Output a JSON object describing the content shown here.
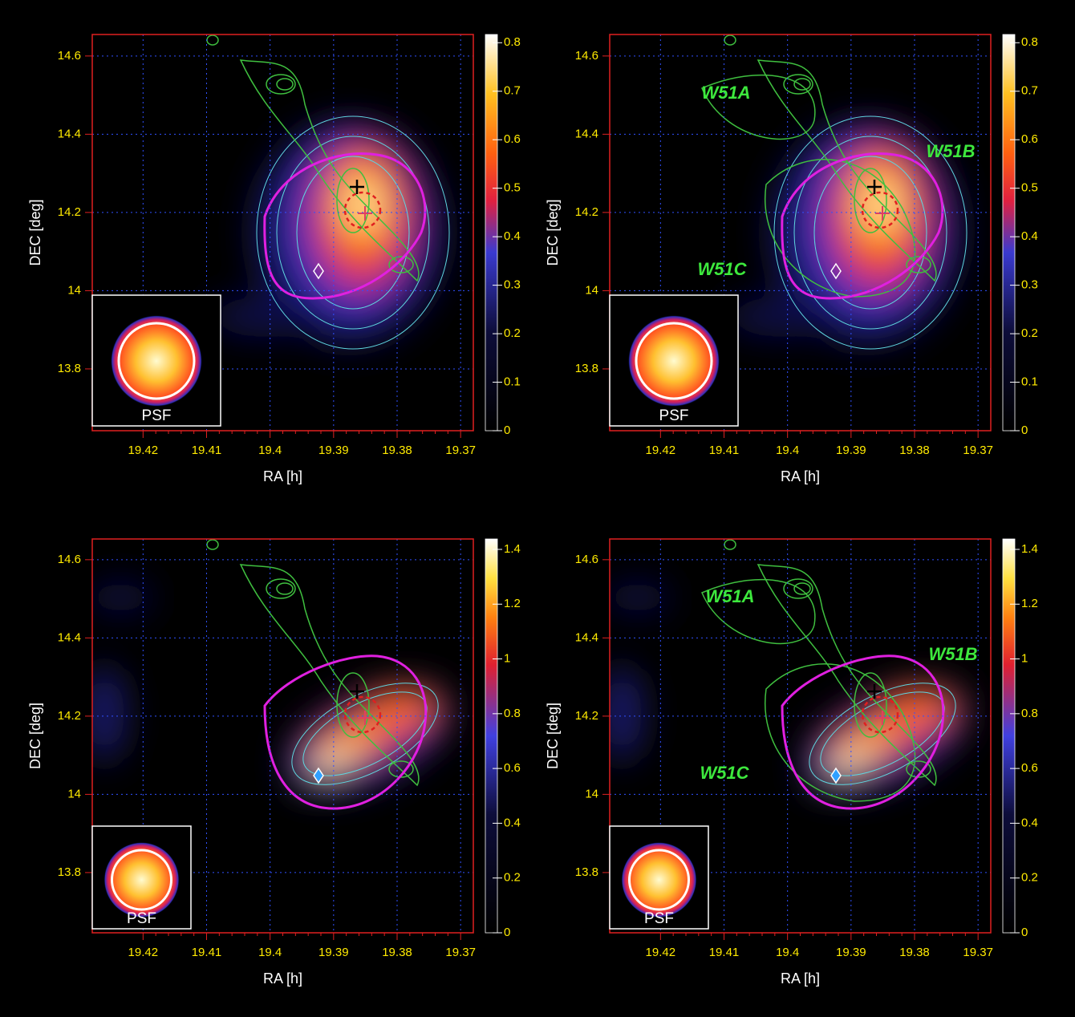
{
  "chart_data": [
    {
      "type": "image",
      "xlabel": "RA [h]",
      "ylabel": "DEC [deg]",
      "xlim": [
        19.428,
        19.368
      ],
      "ylim": [
        13.642,
        14.655
      ],
      "xticks": [
        19.42,
        19.41,
        19.4,
        19.39,
        19.38,
        19.37
      ],
      "yticks": [
        13.8,
        14,
        14.2,
        14.4,
        14.6
      ],
      "clim": [
        0,
        0.817
      ],
      "cticks": [
        0,
        0.1,
        0.2,
        0.3,
        0.4,
        0.5,
        0.6,
        0.7,
        0.8
      ],
      "grid": true,
      "inset_label": "PSF"
    },
    {
      "type": "image",
      "xlabel": "RA [h]",
      "ylabel": "DEC [deg]",
      "xlim": [
        19.428,
        19.368
      ],
      "ylim": [
        13.642,
        14.655
      ],
      "xticks": [
        19.42,
        19.41,
        19.4,
        19.39,
        19.38,
        19.37
      ],
      "yticks": [
        13.8,
        14,
        14.2,
        14.4,
        14.6
      ],
      "clim": [
        0,
        0.817
      ],
      "cticks": [
        0,
        0.1,
        0.2,
        0.3,
        0.4,
        0.5,
        0.6,
        0.7,
        0.8
      ],
      "grid": true,
      "inset_label": "PSF",
      "annotations": [
        "W51A",
        "W51B",
        "W51C"
      ]
    },
    {
      "type": "image",
      "xlabel": "RA [h]",
      "ylabel": "DEC [deg]",
      "xlim": [
        19.428,
        19.368
      ],
      "ylim": [
        13.646,
        14.653
      ],
      "xticks": [
        19.42,
        19.41,
        19.4,
        19.39,
        19.38,
        19.37
      ],
      "yticks": [
        13.8,
        14,
        14.2,
        14.4,
        14.6
      ],
      "clim": [
        0,
        1.438
      ],
      "cticks": [
        0,
        0.2,
        0.4,
        0.6,
        0.8,
        1,
        1.2,
        1.4
      ],
      "grid": true,
      "inset_label": "PSF"
    },
    {
      "type": "image",
      "xlabel": "RA [h]",
      "ylabel": "DEC [deg]",
      "xlim": [
        19.428,
        19.368
      ],
      "ylim": [
        13.646,
        14.653
      ],
      "xticks": [
        19.42,
        19.41,
        19.4,
        19.39,
        19.38,
        19.37
      ],
      "yticks": [
        13.8,
        14,
        14.2,
        14.4,
        14.6
      ],
      "clim": [
        0,
        1.438
      ],
      "cticks": [
        0,
        0.2,
        0.4,
        0.6,
        0.8,
        1,
        1.2,
        1.4
      ],
      "grid": true,
      "inset_label": "PSF",
      "annotations": [
        "W51A",
        "W51B",
        "W51C"
      ]
    }
  ]
}
